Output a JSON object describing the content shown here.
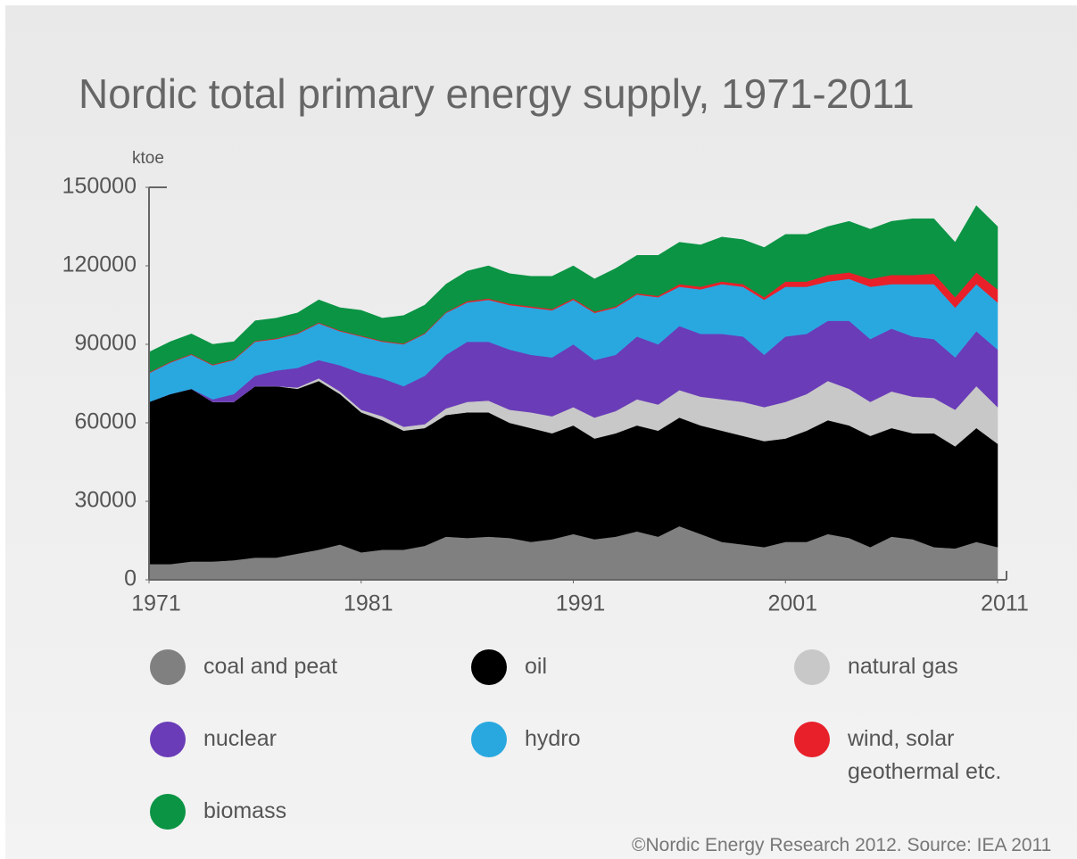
{
  "chart_data": {
    "type": "stacked_area",
    "title": "Nordic total primary energy supply, 1971-2011",
    "y_label": "ktoe",
    "source": "©Nordic Energy Research 2012. Source: IEA 2011",
    "x": [
      1971,
      1972,
      1973,
      1974,
      1975,
      1976,
      1977,
      1978,
      1979,
      1980,
      1981,
      1982,
      1983,
      1984,
      1985,
      1986,
      1987,
      1988,
      1989,
      1990,
      1991,
      1992,
      1993,
      1994,
      1995,
      1996,
      1997,
      1998,
      1999,
      2000,
      2001,
      2002,
      2003,
      2004,
      2005,
      2006,
      2007,
      2008,
      2009,
      2010,
      2011
    ],
    "xlim": [
      1971,
      2011
    ],
    "xticks": [
      1971,
      1981,
      1991,
      2001,
      2011
    ],
    "ylim": [
      0,
      150000
    ],
    "yticks": [
      0,
      30000,
      60000,
      90000,
      120000,
      150000
    ],
    "series": [
      {
        "name": "coal and peat",
        "color": "#808080",
        "values": [
          6000,
          6000,
          7000,
          7000,
          7500,
          8500,
          8500,
          10000,
          11500,
          13500,
          10500,
          11500,
          11500,
          13000,
          16500,
          16000,
          16500,
          16000,
          14500,
          15500,
          17500,
          15500,
          16500,
          18500,
          16500,
          20500,
          17500,
          14500,
          13500,
          12500,
          14500,
          14500,
          17500,
          16000,
          12500,
          16500,
          15500,
          12500,
          12000,
          14500,
          12500
        ]
      },
      {
        "name": "oil",
        "color": "#000000",
        "values": [
          62000,
          65000,
          66000,
          61000,
          60500,
          65500,
          65500,
          63000,
          64500,
          57500,
          53500,
          49500,
          45500,
          45000,
          46500,
          48000,
          47500,
          44000,
          43500,
          40500,
          41500,
          38500,
          39500,
          40500,
          40500,
          41500,
          41500,
          42500,
          41500,
          40500,
          39500,
          42500,
          43500,
          43000,
          42500,
          41500,
          40500,
          43500,
          39000,
          43500,
          39500
        ]
      },
      {
        "name": "natural gas",
        "color": "#c8c8c8",
        "values": [
          0,
          0,
          0,
          0,
          0,
          0,
          0,
          500,
          1000,
          1000,
          1000,
          1500,
          1500,
          1500,
          2500,
          4000,
          4500,
          5000,
          6000,
          6500,
          7000,
          8000,
          8500,
          10000,
          10000,
          10500,
          11000,
          12000,
          13000,
          13000,
          14000,
          14000,
          15000,
          14000,
          13000,
          14000,
          14000,
          13500,
          14000,
          16000,
          14000
        ]
      },
      {
        "name": "nuclear",
        "color": "#6a3cb8",
        "values": [
          0,
          0,
          0,
          1000,
          3000,
          4000,
          6000,
          7500,
          7000,
          10000,
          14000,
          14500,
          15500,
          18500,
          20500,
          23000,
          22500,
          23000,
          22000,
          22500,
          24000,
          22000,
          21500,
          24000,
          23000,
          24500,
          24000,
          25000,
          25000,
          20000,
          25000,
          23000,
          23000,
          26000,
          24000,
          24000,
          23000,
          22500,
          20000,
          21000,
          22000
        ]
      },
      {
        "name": "hydro",
        "color": "#29a8e0",
        "values": [
          11000,
          12000,
          13000,
          13000,
          13000,
          13000,
          12000,
          13000,
          14000,
          13000,
          14000,
          14000,
          16000,
          16000,
          16000,
          15000,
          16000,
          17000,
          18000,
          18000,
          17000,
          18000,
          18000,
          16000,
          18000,
          15000,
          17000,
          19000,
          19000,
          21000,
          19000,
          18000,
          15000,
          16000,
          20000,
          17000,
          20000,
          21000,
          19000,
          18000,
          18000
        ]
      },
      {
        "name": "wind, solar geothermal etc.",
        "color": "#e8202a",
        "values": [
          300,
          300,
          300,
          300,
          300,
          300,
          300,
          300,
          300,
          300,
          300,
          300,
          300,
          300,
          300,
          500,
          500,
          500,
          500,
          500,
          500,
          500,
          500,
          500,
          500,
          1000,
          1000,
          1000,
          1000,
          1000,
          2000,
          2000,
          2500,
          2500,
          3000,
          3500,
          3500,
          4000,
          4000,
          4500,
          5000
        ]
      },
      {
        "name": "biomass",
        "color": "#0a9444",
        "values": [
          7700,
          7700,
          7700,
          7700,
          6700,
          7700,
          7700,
          7700,
          8700,
          8700,
          9700,
          8700,
          10700,
          10700,
          10700,
          11500,
          12500,
          11500,
          11500,
          12500,
          12500,
          12500,
          14500,
          14500,
          15500,
          16000,
          16000,
          17000,
          17000,
          19000,
          18000,
          18000,
          18500,
          19500,
          19000,
          20500,
          21500,
          21000,
          21000,
          25500,
          24000
        ]
      }
    ]
  }
}
